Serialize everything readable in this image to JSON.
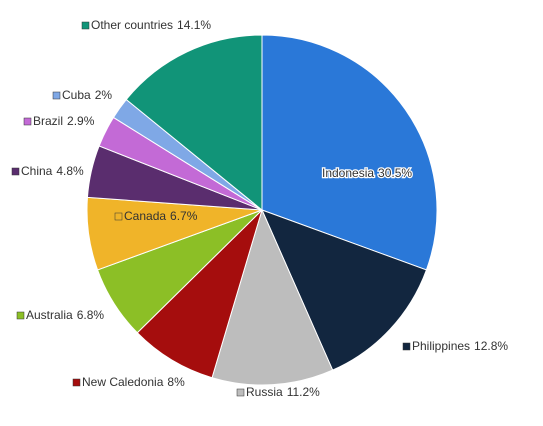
{
  "chart_data": {
    "type": "pie",
    "categories": [
      "Indonesia",
      "Philippines",
      "Russia",
      "New Caledonia",
      "Australia",
      "Canada",
      "China",
      "Brazil",
      "Cuba",
      "Other countries"
    ],
    "values": [
      30.5,
      12.8,
      11.2,
      8,
      6.8,
      6.7,
      4.8,
      2.9,
      2,
      14.1
    ],
    "value_labels": [
      "30.5%",
      "12.8%",
      "11.2%",
      "8%",
      "6.8%",
      "6.7%",
      "4.8%",
      "2.9%",
      "2%",
      "14.1%"
    ],
    "colors": [
      "#2a78d8",
      "#12263f",
      "#bdbdbd",
      "#a50d0d",
      "#8cbf26",
      "#f0b429",
      "#5a2d6e",
      "#c36ad6",
      "#7fa8e6",
      "#119478"
    ]
  }
}
